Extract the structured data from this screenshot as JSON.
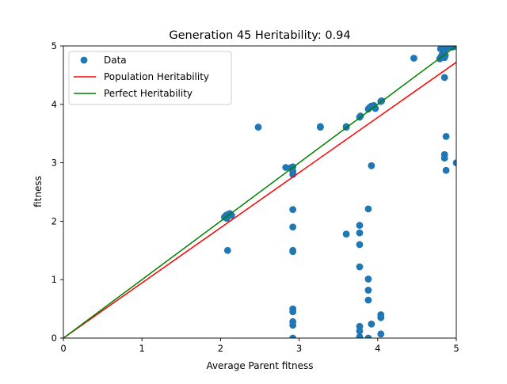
{
  "chart_data": {
    "type": "scatter",
    "title": "Generation 45 Heritability: 0.94",
    "xlabel": "Average Parent fitness",
    "ylabel": "fitness",
    "xlim": [
      0,
      5
    ],
    "ylim": [
      0,
      5
    ],
    "xticks": [
      "0",
      "1",
      "2",
      "3",
      "4",
      "5"
    ],
    "yticks": [
      "0",
      "1",
      "2",
      "3",
      "4",
      "5"
    ],
    "grid": false,
    "legend_position": "top-left",
    "legend": [
      {
        "label": "Data",
        "kind": "marker",
        "color": "#1f77b4"
      },
      {
        "label": "Population Heritability",
        "kind": "line",
        "color": "#ff0000"
      },
      {
        "label": "Perfect Heritability",
        "kind": "line",
        "color": "#008000"
      }
    ],
    "series": [
      {
        "name": "Data",
        "kind": "scatter",
        "color": "#1f77b4",
        "points": [
          [
            2.05,
            2.07
          ],
          [
            2.07,
            2.1
          ],
          [
            2.1,
            2.12
          ],
          [
            2.12,
            2.13
          ],
          [
            2.08,
            2.05
          ],
          [
            2.14,
            2.1
          ],
          [
            2.09,
            1.5
          ],
          [
            2.48,
            3.61
          ],
          [
            2.83,
            2.92
          ],
          [
            2.9,
            2.92
          ],
          [
            2.92,
            2.93
          ],
          [
            2.92,
            2.85
          ],
          [
            2.92,
            2.8
          ],
          [
            2.92,
            2.2
          ],
          [
            2.92,
            1.9
          ],
          [
            2.92,
            1.5
          ],
          [
            2.92,
            1.48
          ],
          [
            2.92,
            0.5
          ],
          [
            2.92,
            0.45
          ],
          [
            2.92,
            0.28
          ],
          [
            2.92,
            0.22
          ],
          [
            2.92,
            0.0
          ],
          [
            3.27,
            3.61
          ],
          [
            3.27,
            3.62
          ],
          [
            3.6,
            3.61
          ],
          [
            3.6,
            3.62
          ],
          [
            3.6,
            1.78
          ],
          [
            3.77,
            3.78
          ],
          [
            3.78,
            3.8
          ],
          [
            3.77,
            1.93
          ],
          [
            3.77,
            1.8
          ],
          [
            3.77,
            1.6
          ],
          [
            3.77,
            1.22
          ],
          [
            3.77,
            0.2
          ],
          [
            3.77,
            0.12
          ],
          [
            3.77,
            0.02
          ],
          [
            3.88,
            3.92
          ],
          [
            3.9,
            3.95
          ],
          [
            3.92,
            3.97
          ],
          [
            3.95,
            3.98
          ],
          [
            3.97,
            3.93
          ],
          [
            3.88,
            2.21
          ],
          [
            3.88,
            1.01
          ],
          [
            3.88,
            0.82
          ],
          [
            3.88,
            0.65
          ],
          [
            3.88,
            0.0
          ],
          [
            3.92,
            2.95
          ],
          [
            3.92,
            0.24
          ],
          [
            4.04,
            4.05
          ],
          [
            4.05,
            4.06
          ],
          [
            4.04,
            0.4
          ],
          [
            4.04,
            0.35
          ],
          [
            4.04,
            0.07
          ],
          [
            4.46,
            4.79
          ],
          [
            4.79,
            4.78
          ],
          [
            4.8,
            4.8
          ],
          [
            4.81,
            4.82
          ],
          [
            4.82,
            4.85
          ],
          [
            4.83,
            4.88
          ],
          [
            4.84,
            4.9
          ],
          [
            4.85,
            4.8
          ],
          [
            4.86,
            4.84
          ],
          [
            4.8,
            4.95
          ],
          [
            4.82,
            4.97
          ],
          [
            4.84,
            4.98
          ],
          [
            4.86,
            4.95
          ],
          [
            4.88,
            4.97
          ],
          [
            4.9,
            4.99
          ],
          [
            4.92,
            5.0
          ],
          [
            4.95,
            4.98
          ],
          [
            4.97,
            4.99
          ],
          [
            4.85,
            4.46
          ],
          [
            4.85,
            3.14
          ],
          [
            4.85,
            3.08
          ],
          [
            4.87,
            3.45
          ],
          [
            4.87,
            2.87
          ],
          [
            5.0,
            3.0
          ]
        ]
      },
      {
        "name": "Population Heritability",
        "kind": "line",
        "color": "#ff0000",
        "points": [
          [
            0,
            0
          ],
          [
            5,
            4.72
          ]
        ]
      },
      {
        "name": "Perfect Heritability",
        "kind": "line",
        "color": "#008000",
        "points": [
          [
            0,
            0
          ],
          [
            5,
            5
          ]
        ]
      }
    ]
  }
}
